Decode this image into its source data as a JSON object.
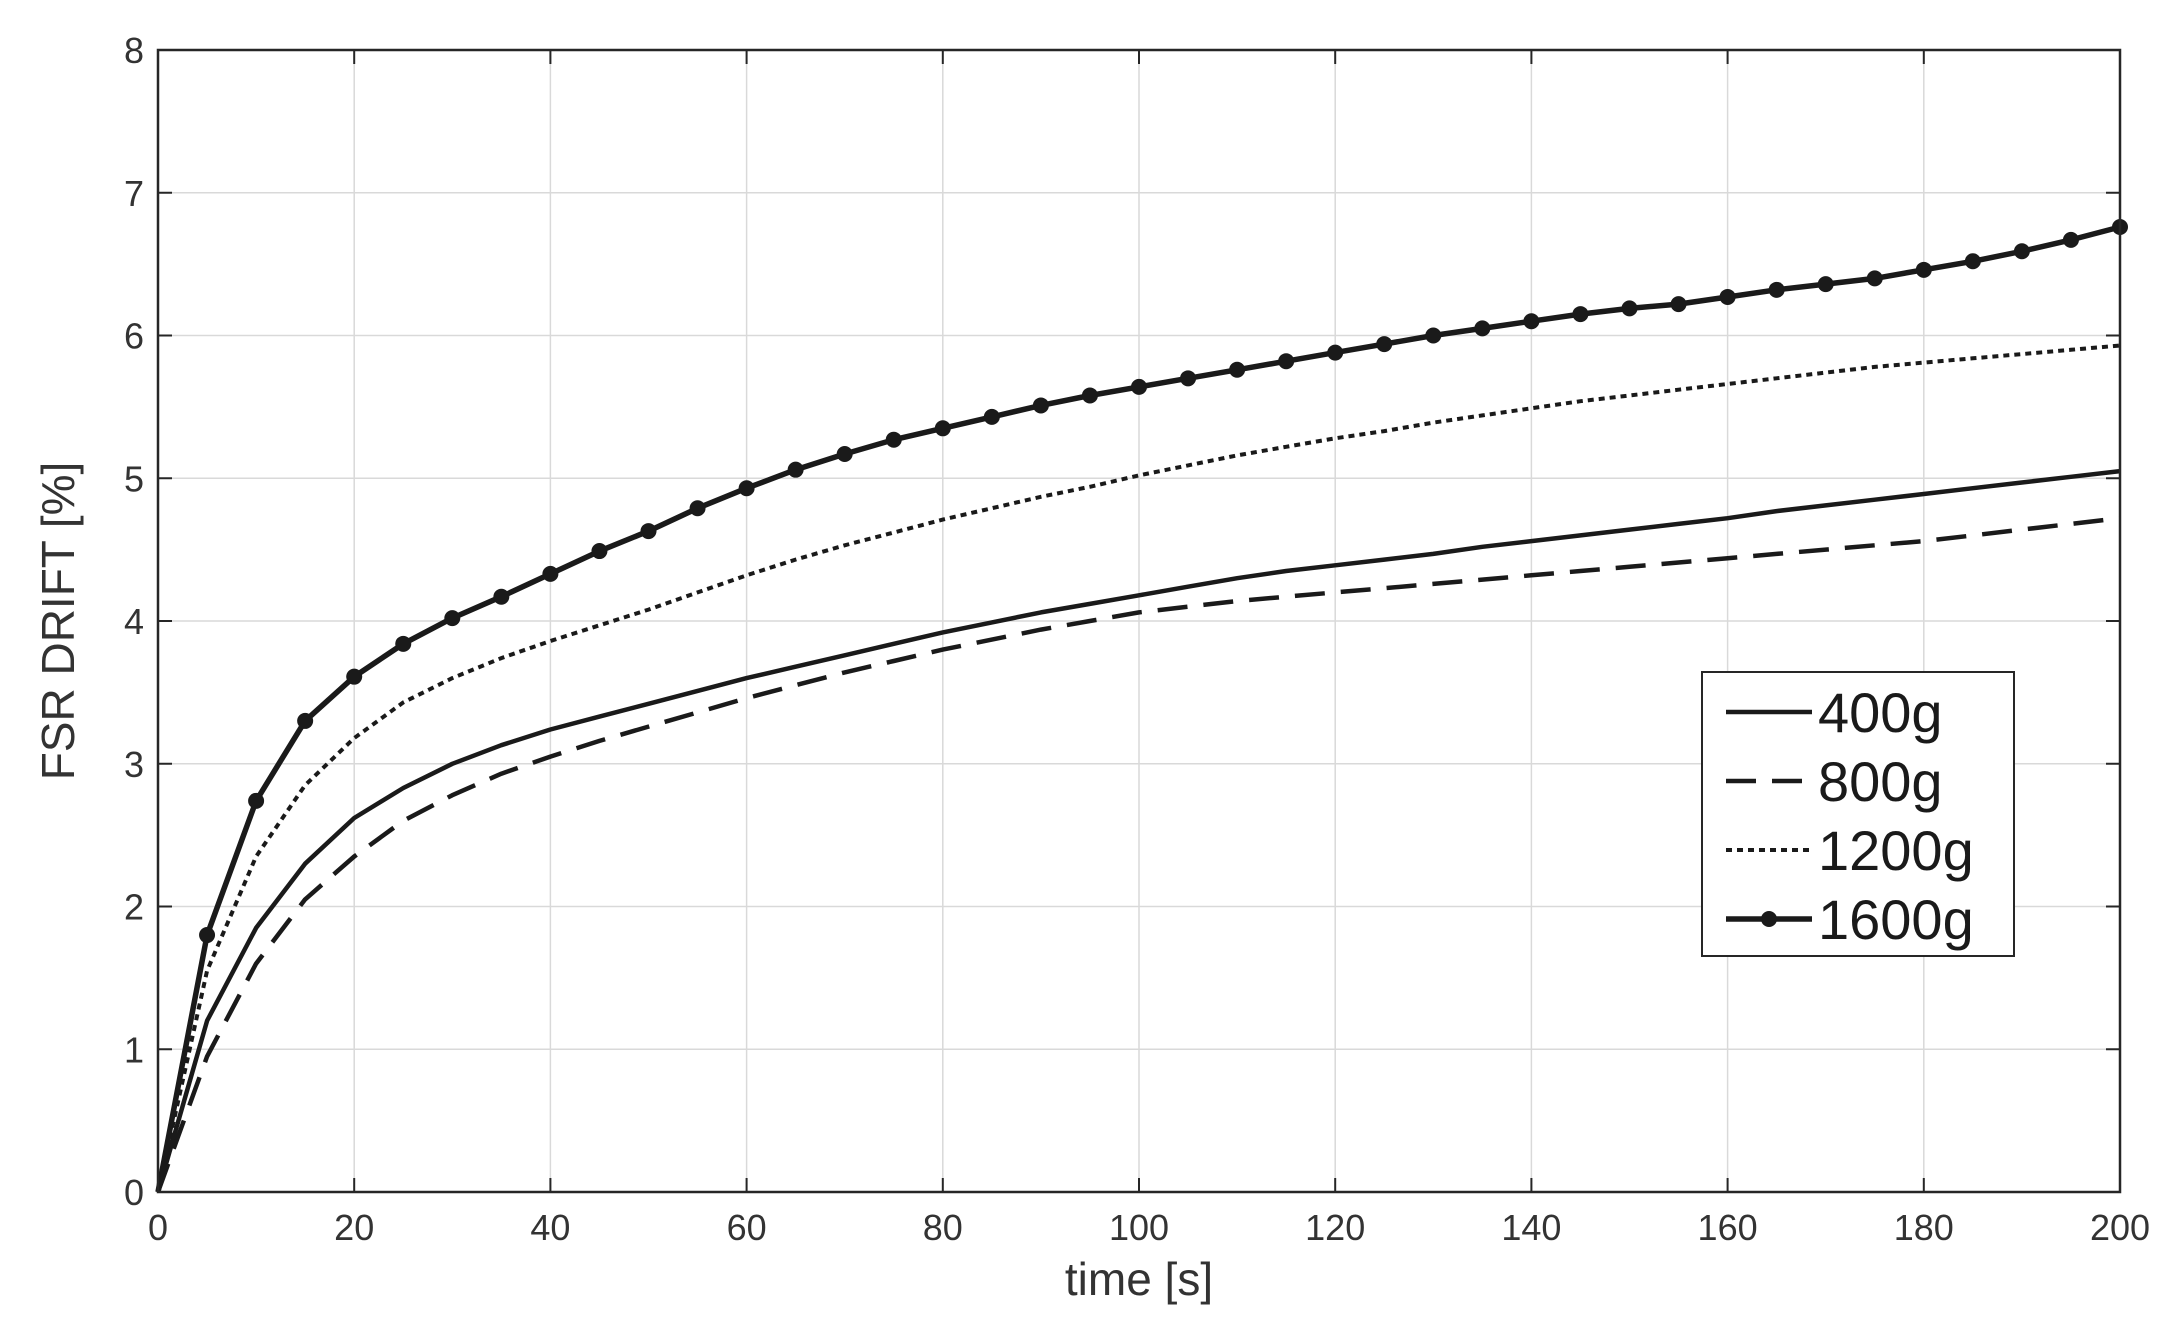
{
  "chart_data": {
    "type": "line",
    "title": "",
    "xlabel": "time [s]",
    "ylabel": "FSR DRIFT [%]",
    "xlim": [
      0,
      200
    ],
    "ylim": [
      0,
      8
    ],
    "xticks": [
      "0",
      "20",
      "40",
      "60",
      "80",
      "100",
      "120",
      "140",
      "160",
      "180",
      "200"
    ],
    "yticks": [
      "0",
      "1",
      "2",
      "3",
      "4",
      "5",
      "6",
      "7",
      "8"
    ],
    "grid": true,
    "legend_position": "lower-right",
    "line_color": "#1a1a1a",
    "series": [
      {
        "name": "400g",
        "style": "solid",
        "x": [
          0,
          5,
          10,
          15,
          20,
          25,
          30,
          35,
          40,
          45,
          50,
          55,
          60,
          65,
          70,
          75,
          80,
          85,
          90,
          95,
          100,
          105,
          110,
          115,
          120,
          125,
          130,
          135,
          140,
          145,
          150,
          155,
          160,
          165,
          170,
          175,
          180,
          185,
          190,
          195,
          200
        ],
        "y": [
          0,
          1.2,
          1.85,
          2.3,
          2.62,
          2.83,
          3.0,
          3.13,
          3.24,
          3.33,
          3.42,
          3.51,
          3.6,
          3.68,
          3.76,
          3.84,
          3.92,
          3.99,
          4.06,
          4.12,
          4.18,
          4.24,
          4.3,
          4.35,
          4.39,
          4.43,
          4.47,
          4.52,
          4.56,
          4.6,
          4.64,
          4.68,
          4.72,
          4.77,
          4.81,
          4.85,
          4.89,
          4.93,
          4.97,
          5.01,
          5.05
        ]
      },
      {
        "name": "800g",
        "style": "dashed",
        "x": [
          0,
          5,
          10,
          15,
          20,
          25,
          30,
          35,
          40,
          45,
          50,
          55,
          60,
          65,
          70,
          75,
          80,
          85,
          90,
          95,
          100,
          105,
          110,
          115,
          120,
          125,
          130,
          135,
          140,
          145,
          150,
          155,
          160,
          165,
          170,
          175,
          180,
          185,
          190,
          195,
          200
        ],
        "y": [
          0,
          0.95,
          1.6,
          2.05,
          2.35,
          2.6,
          2.78,
          2.93,
          3.05,
          3.16,
          3.26,
          3.36,
          3.46,
          3.55,
          3.64,
          3.72,
          3.8,
          3.87,
          3.94,
          4.0,
          4.06,
          4.1,
          4.14,
          4.17,
          4.2,
          4.23,
          4.26,
          4.29,
          4.32,
          4.35,
          4.38,
          4.41,
          4.44,
          4.47,
          4.5,
          4.53,
          4.56,
          4.6,
          4.64,
          4.68,
          4.72
        ]
      },
      {
        "name": "1200g",
        "style": "dotted",
        "x": [
          0,
          5,
          10,
          15,
          20,
          25,
          30,
          35,
          40,
          45,
          50,
          55,
          60,
          65,
          70,
          75,
          80,
          85,
          90,
          95,
          100,
          105,
          110,
          115,
          120,
          125,
          130,
          135,
          140,
          145,
          150,
          155,
          160,
          165,
          170,
          175,
          180,
          185,
          190,
          195,
          200
        ],
        "y": [
          0,
          1.55,
          2.35,
          2.85,
          3.18,
          3.43,
          3.6,
          3.74,
          3.86,
          3.97,
          4.08,
          4.2,
          4.32,
          4.43,
          4.53,
          4.62,
          4.71,
          4.79,
          4.87,
          4.94,
          5.02,
          5.09,
          5.16,
          5.22,
          5.28,
          5.33,
          5.39,
          5.44,
          5.49,
          5.54,
          5.58,
          5.62,
          5.66,
          5.7,
          5.74,
          5.78,
          5.81,
          5.84,
          5.87,
          5.9,
          5.93
        ]
      },
      {
        "name": "1600g",
        "style": "solid-marker",
        "x": [
          0,
          5,
          10,
          15,
          20,
          25,
          30,
          35,
          40,
          45,
          50,
          55,
          60,
          65,
          70,
          75,
          80,
          85,
          90,
          95,
          100,
          105,
          110,
          115,
          120,
          125,
          130,
          135,
          140,
          145,
          150,
          155,
          160,
          165,
          170,
          175,
          180,
          185,
          190,
          195,
          200
        ],
        "y": [
          0,
          1.8,
          2.74,
          3.3,
          3.61,
          3.84,
          4.02,
          4.17,
          4.33,
          4.49,
          4.63,
          4.79,
          4.93,
          5.06,
          5.17,
          5.27,
          5.35,
          5.43,
          5.51,
          5.58,
          5.64,
          5.7,
          5.76,
          5.82,
          5.88,
          5.94,
          6.0,
          6.05,
          6.1,
          6.15,
          6.19,
          6.22,
          6.27,
          6.32,
          6.36,
          6.4,
          6.46,
          6.52,
          6.59,
          6.67,
          6.76
        ]
      }
    ]
  }
}
